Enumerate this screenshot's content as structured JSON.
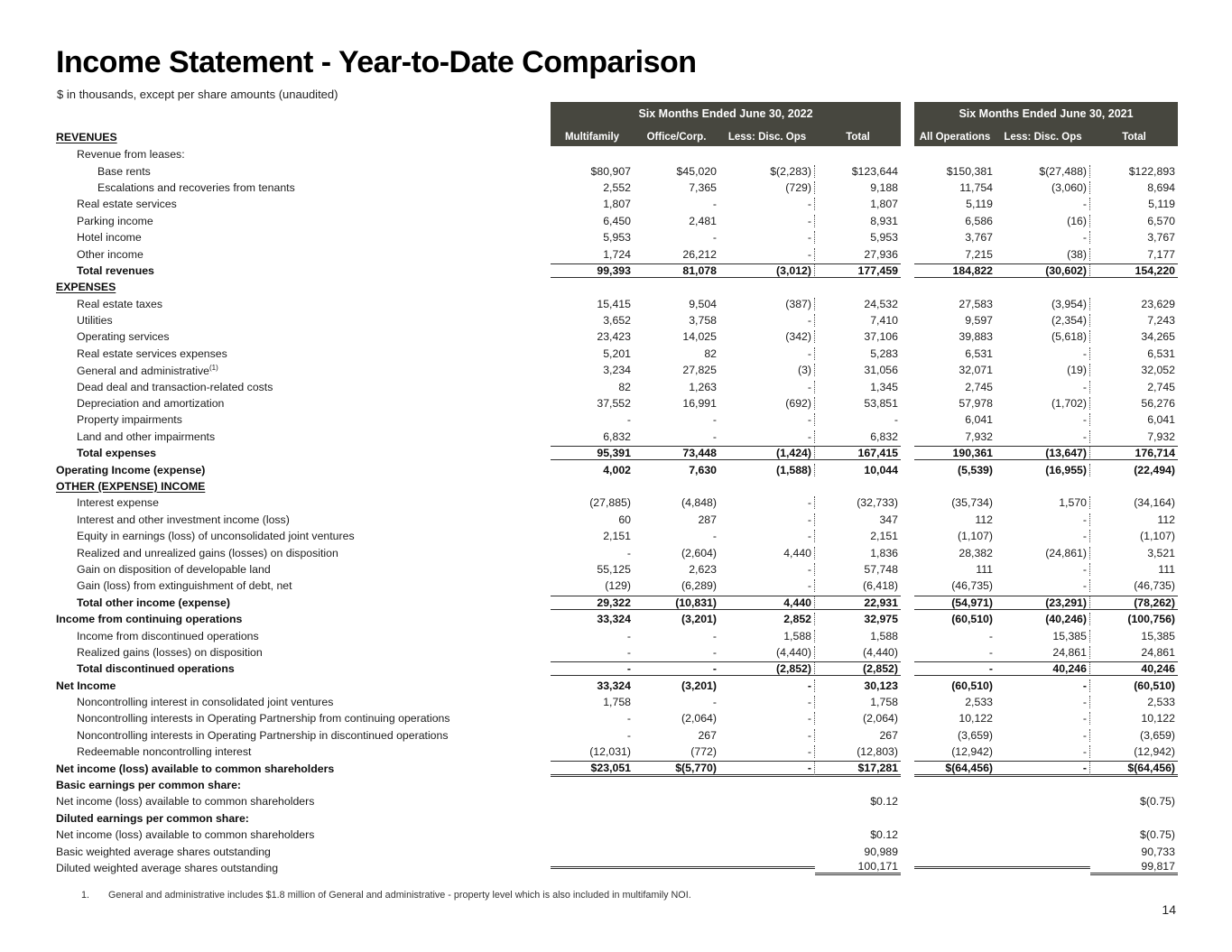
{
  "page": {
    "title": "Income Statement - Year-to-Date Comparison",
    "subtitle": "$ in thousands, except per share amounts (unaudited)",
    "footnote_number": "1.",
    "footnote_text": "General and administrative includes $1.8 million of General and administrative - property level which is also included in multifamily NOI.",
    "page_number": "14"
  },
  "colors": {
    "header_bg": "#47473f",
    "rule": "#2d2d2d"
  },
  "table": {
    "section_revenues": "REVENUES",
    "groups": [
      {
        "title": "Six Months Ended June 30, 2022",
        "columns": [
          "Multifamily",
          "Office/Corp.",
          "Less: Disc. Ops",
          "Total"
        ]
      },
      {
        "title": "Six Months Ended June 30, 2021",
        "columns": [
          "All Operations",
          "Less: Disc. Ops",
          "Total"
        ]
      }
    ],
    "rows": [
      {
        "label": "Revenue from leases:",
        "indent": 1
      },
      {
        "label": "Base rents",
        "indent": 2,
        "values": [
          "$80,907",
          "$45,020",
          "$(2,283)",
          "$123,644",
          "$150,381",
          "$(27,488)",
          "$122,893"
        ]
      },
      {
        "label": "Escalations and recoveries from tenants",
        "indent": 2,
        "values": [
          "2,552",
          "7,365",
          "(729)",
          "9,188",
          "11,754",
          "(3,060)",
          "8,694"
        ]
      },
      {
        "label": "Real estate services",
        "indent": 1,
        "values": [
          "1,807",
          "-",
          "-",
          "1,807",
          "5,119",
          "-",
          "5,119"
        ]
      },
      {
        "label": "Parking income",
        "indent": 1,
        "values": [
          "6,450",
          "2,481",
          "-",
          "8,931",
          "6,586",
          "(16)",
          "6,570"
        ]
      },
      {
        "label": "Hotel income",
        "indent": 1,
        "values": [
          "5,953",
          "-",
          "-",
          "5,953",
          "3,767",
          "-",
          "3,767"
        ]
      },
      {
        "label": "Other income",
        "indent": 1,
        "values": [
          "1,724",
          "26,212",
          "-",
          "27,936",
          "7,215",
          "(38)",
          "7,177"
        ]
      },
      {
        "label": "Total revenues",
        "indent": 1,
        "b": true,
        "rt": true,
        "rb": true,
        "values": [
          "99,393",
          "81,078",
          "(3,012)",
          "177,459",
          "184,822",
          "(30,602)",
          "154,220"
        ]
      },
      {
        "label": "EXPENSES",
        "indent": 0,
        "sec": true
      },
      {
        "label": "Real estate taxes",
        "indent": 1,
        "values": [
          "15,415",
          "9,504",
          "(387)",
          "24,532",
          "27,583",
          "(3,954)",
          "23,629"
        ]
      },
      {
        "label": "Utilities",
        "indent": 1,
        "values": [
          "3,652",
          "3,758",
          "-",
          "7,410",
          "9,597",
          "(2,354)",
          "7,243"
        ]
      },
      {
        "label": "Operating services",
        "indent": 1,
        "values": [
          "23,423",
          "14,025",
          "(342)",
          "37,106",
          "39,883",
          "(5,618)",
          "34,265"
        ]
      },
      {
        "label": "Real estate services expenses",
        "indent": 1,
        "values": [
          "5,201",
          "82",
          "-",
          "5,283",
          "6,531",
          "-",
          "6,531"
        ]
      },
      {
        "label": "General and administrative",
        "sup": "(1)",
        "indent": 1,
        "values": [
          "3,234",
          "27,825",
          "(3)",
          "31,056",
          "32,071",
          "(19)",
          "32,052"
        ]
      },
      {
        "label": "Dead deal and transaction-related costs",
        "indent": 1,
        "values": [
          "82",
          "1,263",
          "-",
          "1,345",
          "2,745",
          "-",
          "2,745"
        ]
      },
      {
        "label": "Depreciation and amortization",
        "indent": 1,
        "values": [
          "37,552",
          "16,991",
          "(692)",
          "53,851",
          "57,978",
          "(1,702)",
          "56,276"
        ]
      },
      {
        "label": "Property impairments",
        "indent": 1,
        "values": [
          "-",
          "-",
          "-",
          "-",
          "6,041",
          "-",
          "6,041"
        ]
      },
      {
        "label": "Land and other impairments",
        "indent": 1,
        "values": [
          "6,832",
          "-",
          "-",
          "6,832",
          "7,932",
          "-",
          "7,932"
        ]
      },
      {
        "label": "Total expenses",
        "indent": 1,
        "b": true,
        "rt": true,
        "rb": true,
        "values": [
          "95,391",
          "73,448",
          "(1,424)",
          "167,415",
          "190,361",
          "(13,647)",
          "176,714"
        ]
      },
      {
        "label": "Operating Income (expense)",
        "indent": 0,
        "b": true,
        "values": [
          "4,002",
          "7,630",
          "(1,588)",
          "10,044",
          "(5,539)",
          "(16,955)",
          "(22,494)"
        ]
      },
      {
        "label": "OTHER (EXPENSE) INCOME",
        "indent": 0,
        "sec": true
      },
      {
        "label": "Interest expense",
        "indent": 1,
        "values": [
          "(27,885)",
          "(4,848)",
          "-",
          "(32,733)",
          "(35,734)",
          "1,570",
          "(34,164)"
        ]
      },
      {
        "label": "Interest and other investment income (loss)",
        "indent": 1,
        "values": [
          "60",
          "287",
          "-",
          "347",
          "112",
          "-",
          "112"
        ]
      },
      {
        "label": "Equity in earnings (loss) of unconsolidated joint ventures",
        "indent": 1,
        "values": [
          "2,151",
          "-",
          "-",
          "2,151",
          "(1,107)",
          "-",
          "(1,107)"
        ]
      },
      {
        "label": "Realized and unrealized gains (losses) on disposition",
        "indent": 1,
        "values": [
          "-",
          "(2,604)",
          "4,440",
          "1,836",
          "28,382",
          "(24,861)",
          "3,521"
        ]
      },
      {
        "label": "Gain on disposition of developable land",
        "indent": 1,
        "values": [
          "55,125",
          "2,623",
          "-",
          "57,748",
          "111",
          "-",
          "111"
        ]
      },
      {
        "label": "Gain (loss) from extinguishment of debt, net",
        "indent": 1,
        "values": [
          "(129)",
          "(6,289)",
          "-",
          "(6,418)",
          "(46,735)",
          "-",
          "(46,735)"
        ]
      },
      {
        "label": "Total other income (expense)",
        "indent": 1,
        "b": true,
        "rt": true,
        "rb": true,
        "values": [
          "29,322",
          "(10,831)",
          "4,440",
          "22,931",
          "(54,971)",
          "(23,291)",
          "(78,262)"
        ]
      },
      {
        "label": "Income from continuing operations",
        "indent": 0,
        "b": true,
        "values": [
          "33,324",
          "(3,201)",
          "2,852",
          "32,975",
          "(60,510)",
          "(40,246)",
          "(100,756)"
        ]
      },
      {
        "label": "Income from discontinued operations",
        "indent": 1,
        "values": [
          "-",
          "-",
          "1,588",
          "1,588",
          "-",
          "15,385",
          "15,385"
        ]
      },
      {
        "label": "Realized gains (losses) on disposition",
        "indent": 1,
        "values": [
          "-",
          "-",
          "(4,440)",
          "(4,440)",
          "-",
          "24,861",
          "24,861"
        ]
      },
      {
        "label": "Total discontinued operations",
        "indent": 1,
        "b": true,
        "rt": true,
        "rb": true,
        "values": [
          "-",
          "-",
          "(2,852)",
          "(2,852)",
          "-",
          "40,246",
          "40,246"
        ]
      },
      {
        "label": "Net Income",
        "indent": 0,
        "b": true,
        "values": [
          "33,324",
          "(3,201)",
          "-",
          "30,123",
          "(60,510)",
          "-",
          "(60,510)"
        ]
      },
      {
        "label": "Noncontrolling interest in consolidated joint ventures",
        "indent": 1,
        "values": [
          "1,758",
          "-",
          "-",
          "1,758",
          "2,533",
          "-",
          "2,533"
        ]
      },
      {
        "label": "Noncontrolling interests in Operating Partnership from continuing operations",
        "indent": 1,
        "values": [
          "-",
          "(2,064)",
          "-",
          "(2,064)",
          "10,122",
          "-",
          "10,122"
        ]
      },
      {
        "label": "Noncontrolling interests in Operating Partnership in discontinued operations",
        "indent": 1,
        "values": [
          "-",
          "267",
          "-",
          "267",
          "(3,659)",
          "-",
          "(3,659)"
        ]
      },
      {
        "label": "Redeemable noncontrolling interest",
        "indent": 1,
        "values": [
          "(12,031)",
          "(772)",
          "-",
          "(12,803)",
          "(12,942)",
          "-",
          "(12,942)"
        ]
      },
      {
        "label": "Net income (loss) available to common shareholders",
        "indent": 0,
        "b": true,
        "rt": true,
        "db": true,
        "values": [
          "$23,051",
          "$(5,770)",
          "-",
          "$17,281",
          "$(64,456)",
          "-",
          "$(64,456)"
        ]
      },
      {
        "label": "Basic earnings per common share:",
        "indent": 0,
        "b": true
      },
      {
        "label": "Net income (loss) available to common shareholders",
        "indent": 0,
        "values": [
          "",
          "",
          "",
          "$0.12",
          "",
          "",
          "$(0.75)"
        ]
      },
      {
        "label": "Diluted earnings per common share:",
        "indent": 0,
        "b": true
      },
      {
        "label": "Net income (loss) available to common shareholders",
        "indent": 0,
        "values": [
          "",
          "",
          "",
          "$0.12",
          "",
          "",
          "$(0.75)"
        ]
      },
      {
        "label": "Basic weighted average shares outstanding",
        "indent": 0,
        "values": [
          "",
          "",
          "",
          "90,989",
          "",
          "",
          "90,733"
        ]
      },
      {
        "label": "Diluted weighted average shares outstanding",
        "indent": 0,
        "db": true,
        "values": [
          "",
          "",
          "",
          "100,171",
          "",
          "",
          "99,817"
        ]
      }
    ]
  }
}
